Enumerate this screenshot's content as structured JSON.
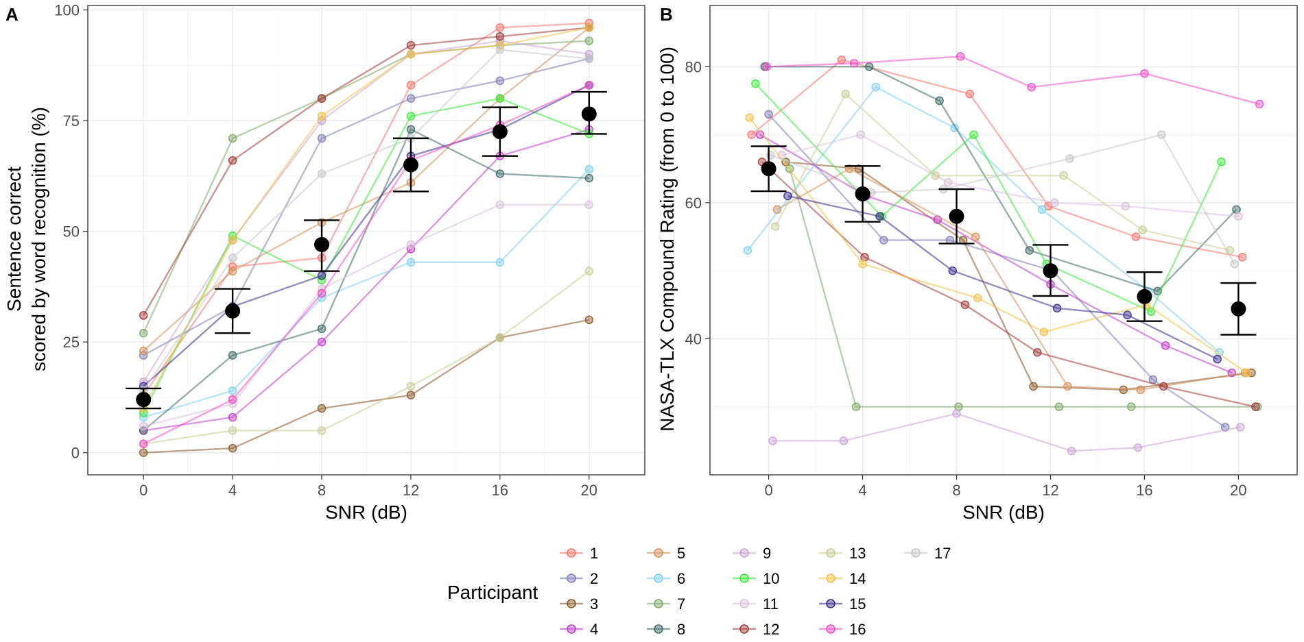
{
  "chart_data": [
    {
      "type": "line",
      "panel_label": "A",
      "title": "",
      "xlabel": "SNR (dB)",
      "ylabel_lines": [
        "Sentence correct",
        "scored by word recognition (%)"
      ],
      "x": [
        0,
        4,
        8,
        12,
        16,
        20
      ],
      "xlim": [
        -2.5,
        22.5
      ],
      "ylim": [
        -5,
        101
      ],
      "xticks": [
        0,
        4,
        8,
        12,
        16,
        20
      ],
      "yticks": [
        0,
        25,
        50,
        75,
        100
      ],
      "grid": true,
      "series": [
        {
          "name": "1",
          "color": "#F8766D",
          "values": [
            13,
            42,
            44,
            83,
            96,
            97
          ]
        },
        {
          "name": "2",
          "color": "#7F7FB5",
          "values": [
            22,
            33,
            71,
            80,
            84,
            89
          ]
        },
        {
          "name": "3",
          "color": "#8B5A2B",
          "values": [
            0,
            1,
            10,
            13,
            26,
            30
          ]
        },
        {
          "name": "4",
          "color": "#C03FC9",
          "values": [
            5,
            8,
            25,
            46,
            67,
            73
          ]
        },
        {
          "name": "5",
          "color": "#D2925A",
          "values": [
            23,
            41,
            52,
            61,
            80,
            96
          ]
        },
        {
          "name": "6",
          "color": "#80D0F0",
          "values": [
            8,
            14,
            35,
            43,
            43,
            64
          ]
        },
        {
          "name": "7",
          "color": "#7FA86A",
          "values": [
            27,
            71,
            80,
            90,
            92,
            93
          ]
        },
        {
          "name": "8",
          "color": "#3F6B66",
          "values": [
            5,
            22,
            28,
            73,
            63,
            62
          ]
        },
        {
          "name": "9",
          "color": "#C9A7D4",
          "values": [
            16,
            48,
            75,
            90,
            93,
            90
          ]
        },
        {
          "name": "10",
          "color": "#3BE83B",
          "values": [
            9,
            49,
            39,
            76,
            80,
            72
          ]
        },
        {
          "name": "11",
          "color": "#D7C3DA",
          "values": [
            6,
            11,
            37,
            47,
            56,
            56
          ]
        },
        {
          "name": "12",
          "color": "#A13C3C",
          "values": [
            31,
            66,
            80,
            92,
            94,
            96
          ]
        },
        {
          "name": "13",
          "color": "#C9CF96",
          "values": [
            2,
            5,
            5,
            15,
            26,
            41
          ]
        },
        {
          "name": "14",
          "color": "#F2C24A",
          "values": [
            10,
            48,
            76,
            90,
            92,
            96
          ]
        },
        {
          "name": "15",
          "color": "#3A2D8C",
          "values": [
            15,
            33,
            40,
            67,
            73,
            83
          ]
        },
        {
          "name": "16",
          "color": "#F24FC8",
          "values": [
            2,
            12,
            36,
            66,
            74,
            83
          ]
        },
        {
          "name": "17",
          "color": "#C8C8C8",
          "values": [
            14,
            44,
            63,
            71,
            91,
            89
          ]
        }
      ],
      "mean": {
        "values": [
          12,
          32,
          47,
          65,
          72.5,
          76.5
        ],
        "lower": [
          10,
          27,
          41,
          59,
          67,
          72
        ],
        "upper": [
          14.5,
          37,
          52.5,
          71,
          78,
          81.5
        ]
      }
    },
    {
      "type": "line",
      "panel_label": "B",
      "title": "",
      "xlabel": "SNR (dB)",
      "ylabel_lines": [
        "NASA-TLX Compound Rating (from 0 to 100)"
      ],
      "x": [
        0,
        4,
        8,
        12,
        16,
        20
      ],
      "xlim": [
        -2.5,
        22.5
      ],
      "ylim": [
        20,
        89
      ],
      "xticks": [
        0,
        4,
        8,
        12,
        16,
        20
      ],
      "yticks": [
        40,
        60,
        80
      ],
      "grid": true,
      "series": [
        {
          "name": "1",
          "color": "#F8766D",
          "values": [
            70,
            81,
            76,
            59.5,
            55,
            52
          ]
        },
        {
          "name": "2",
          "color": "#7F7FB5",
          "values": [
            73,
            54.5,
            54.5,
            50,
            34,
            27
          ]
        },
        {
          "name": "3",
          "color": "#8B5A2B",
          "values": [
            66,
            65,
            54.5,
            33,
            32.5,
            35
          ]
        },
        {
          "name": "4",
          "color": "#C03FC9",
          "values": [
            70,
            61,
            57.5,
            48,
            39,
            35
          ]
        },
        {
          "name": "5",
          "color": "#D2925A",
          "values": [
            59,
            65,
            55,
            33,
            32.5,
            35
          ]
        },
        {
          "name": "6",
          "color": "#80D0F0",
          "values": [
            53,
            77,
            71,
            59,
            47,
            38
          ]
        },
        {
          "name": "7",
          "color": "#7FA86A",
          "values": [
            65,
            30,
            30,
            30,
            30,
            30
          ]
        },
        {
          "name": "8",
          "color": "#3F6B66",
          "values": [
            80,
            80,
            75,
            53,
            47,
            59
          ]
        },
        {
          "name": "9",
          "color": "#C9A7D4",
          "values": [
            25,
            25,
            29,
            23.5,
            24,
            27
          ]
        },
        {
          "name": "10",
          "color": "#3BE83B",
          "values": [
            77.5,
            58,
            70,
            51,
            44,
            66
          ]
        },
        {
          "name": "11",
          "color": "#D7C3DA",
          "values": [
            67,
            70,
            63,
            60,
            59.5,
            58
          ]
        },
        {
          "name": "12",
          "color": "#A13C3C",
          "values": [
            66,
            52,
            45,
            38,
            33,
            30
          ]
        },
        {
          "name": "13",
          "color": "#C9CF96",
          "values": [
            56.5,
            76,
            64,
            64,
            56,
            53
          ]
        },
        {
          "name": "14",
          "color": "#F2C24A",
          "values": [
            72.5,
            51,
            46,
            41,
            45,
            35
          ]
        },
        {
          "name": "15",
          "color": "#3A2D8C",
          "values": [
            61,
            58,
            50,
            44.5,
            43.5,
            37
          ]
        },
        {
          "name": "16",
          "color": "#F24FC8",
          "values": [
            80,
            80.5,
            81.5,
            77,
            79,
            74.5
          ]
        },
        {
          "name": "17",
          "color": "#C8C8C8",
          "values": [
            67,
            61.5,
            62,
            66.5,
            70,
            51
          ]
        }
      ],
      "mean": {
        "values": [
          65,
          61.3,
          58,
          50,
          46.2,
          44.4
        ],
        "lower": [
          61.7,
          57.2,
          54,
          46.3,
          42.6,
          40.6
        ],
        "upper": [
          68.3,
          65.4,
          62,
          53.8,
          49.8,
          48.2
        ]
      }
    }
  ],
  "legend": {
    "title": "Participant",
    "columns": [
      [
        "1",
        "2",
        "3",
        "4"
      ],
      [
        "5",
        "6",
        "7",
        "8"
      ],
      [
        "9",
        "10",
        "11",
        "12"
      ],
      [
        "13",
        "14",
        "15",
        "16"
      ],
      [
        "17"
      ]
    ]
  }
}
